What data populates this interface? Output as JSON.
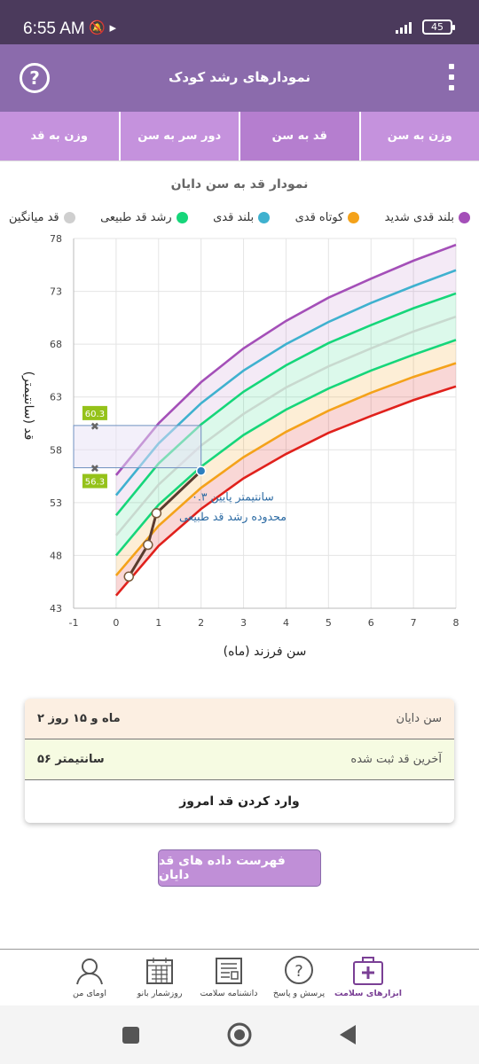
{
  "status": {
    "time": "6:55 AM",
    "battery": "45"
  },
  "app": {
    "title": "نمودارهای رشد کودک"
  },
  "tabs": [
    {
      "label": "وزن به سن",
      "active": false
    },
    {
      "label": "قد به سن",
      "active": true
    },
    {
      "label": "دور سر به سن",
      "active": false
    },
    {
      "label": "وزن به قد",
      "active": false
    }
  ],
  "chart_title": "نمودار قد به سن دایان",
  "legend": [
    {
      "label": "بلند قدی شدید",
      "color": "#a44fb8"
    },
    {
      "label": "کوتاه قدی",
      "color": "#f4a21a"
    },
    {
      "label": "بلند قدی",
      "color": "#3fb1cf"
    },
    {
      "label": "رشد قد طبیعی",
      "color": "#16d67a"
    },
    {
      "label": "قد میانگین",
      "color": "#cfcfcf"
    }
  ],
  "chart_data": {
    "type": "line",
    "xlabel": "سن فرزند (ماه)",
    "ylabel": "قد (سانتیمتر)",
    "xlim": [
      -1,
      8
    ],
    "ylim": [
      43,
      78
    ],
    "xticks": [
      "-1",
      "0",
      "1",
      "2",
      "3",
      "4",
      "5",
      "6",
      "7",
      "8"
    ],
    "yticks": [
      "43",
      "48",
      "53",
      "58",
      "63",
      "68",
      "73",
      "78"
    ],
    "x": [
      0,
      1,
      2,
      3,
      4,
      5,
      6,
      7,
      8
    ],
    "series": [
      {
        "key": "p99",
        "color": "#a44fb8",
        "values": [
          55.6,
          60.5,
          64.4,
          67.6,
          70.2,
          72.4,
          74.2,
          75.9,
          77.4
        ]
      },
      {
        "key": "p95",
        "color": "#3fb1cf",
        "values": [
          53.7,
          58.6,
          62.4,
          65.5,
          68.0,
          70.1,
          71.9,
          73.5,
          75.0
        ]
      },
      {
        "key": "p85",
        "color": "#16d67a",
        "values": [
          51.8,
          56.7,
          60.4,
          63.5,
          66.0,
          68.1,
          69.8,
          71.4,
          72.8
        ]
      },
      {
        "key": "p50",
        "color": "#c8d9cf",
        "values": [
          49.9,
          54.7,
          58.4,
          61.4,
          63.9,
          65.9,
          67.6,
          69.2,
          70.6
        ]
      },
      {
        "key": "p15",
        "color": "#16d67a",
        "values": [
          48.0,
          52.8,
          56.4,
          59.4,
          61.8,
          63.8,
          65.5,
          67.0,
          68.4
        ]
      },
      {
        "key": "p5",
        "color": "#f4a21a",
        "values": [
          46.1,
          50.8,
          54.4,
          57.3,
          59.7,
          61.7,
          63.4,
          64.9,
          66.2
        ]
      },
      {
        "key": "p1",
        "color": "#e0211c",
        "values": [
          44.2,
          48.9,
          52.4,
          55.3,
          57.6,
          59.6,
          61.2,
          62.7,
          64.0
        ]
      }
    ],
    "child": {
      "color": "#5a3b2e",
      "points": [
        {
          "x": 0.3,
          "y": 46.0
        },
        {
          "x": 0.75,
          "y": 49.0
        },
        {
          "x": 0.95,
          "y": 52.0
        },
        {
          "x": 2.0,
          "y": 56.0
        }
      ]
    },
    "range_box": {
      "x0": -1,
      "x1": 2.0,
      "y0": 56.3,
      "y1": 60.3,
      "label_top": "60.3",
      "label_bottom": "56.3"
    },
    "annotation": {
      "line1": "۰.۳ سانتیمتر پایین",
      "line2": "محدوده رشد قد طبیعی"
    }
  },
  "info": {
    "age_label": "سن دایان",
    "age_value": "۲ ماه و ۱۵ روز",
    "height_label": "آخرین قد ثبت شده",
    "height_value": "۵۶ سانتیمتر",
    "enter_label": "وارد کردن قد امروز"
  },
  "list_button": "فهرست داده های قد دایان",
  "bottom_nav": [
    {
      "label": "ابزارهای سلامت",
      "icon": "medkit-icon",
      "active": true
    },
    {
      "label": "پرسش و پاسخ",
      "icon": "question-bubble-icon",
      "active": false
    },
    {
      "label": "دانشنامه سلامت",
      "icon": "newspaper-icon",
      "active": false
    },
    {
      "label": "روزشمار بانو",
      "icon": "calendar-icon",
      "active": false
    },
    {
      "label": "اومای من",
      "icon": "user-icon",
      "active": false
    }
  ]
}
